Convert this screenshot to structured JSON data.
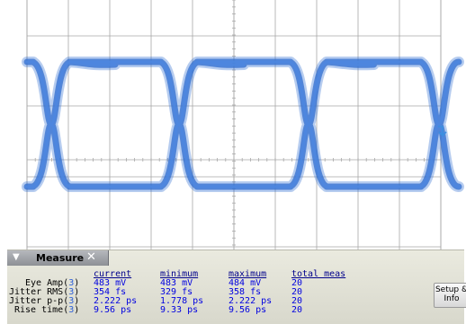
{
  "colors": {
    "grid": "#a8a8a8",
    "trace": "#2f6dd0",
    "marker": "#3b8fe0"
  },
  "icons": {
    "collapse": "chevron-down-icon",
    "close": "close-icon",
    "trigger": "trigger-level-marker-icon"
  },
  "measure": {
    "title": "Measure",
    "setup_label": "Setup & Info",
    "headers": [
      "current",
      "minimum",
      "maximum",
      "total meas"
    ],
    "rows": [
      {
        "label": "Eye Amp",
        "channel": "3",
        "current": "483 mV",
        "minimum": "483 mV",
        "maximum": "484 mV",
        "total": "20"
      },
      {
        "label": "Jitter RMS",
        "channel": "3",
        "current": "354 fs",
        "minimum": "329 fs",
        "maximum": "358 fs",
        "total": "20"
      },
      {
        "label": "Jitter p-p",
        "channel": "3",
        "current": "2.222 ps",
        "minimum": "1.778 ps",
        "maximum": "2.222 ps",
        "total": "20"
      },
      {
        "label": "Rise time",
        "channel": "3",
        "current": "9.56 ps",
        "minimum": "9.33 ps",
        "maximum": "9.56 ps",
        "total": "20"
      }
    ]
  }
}
